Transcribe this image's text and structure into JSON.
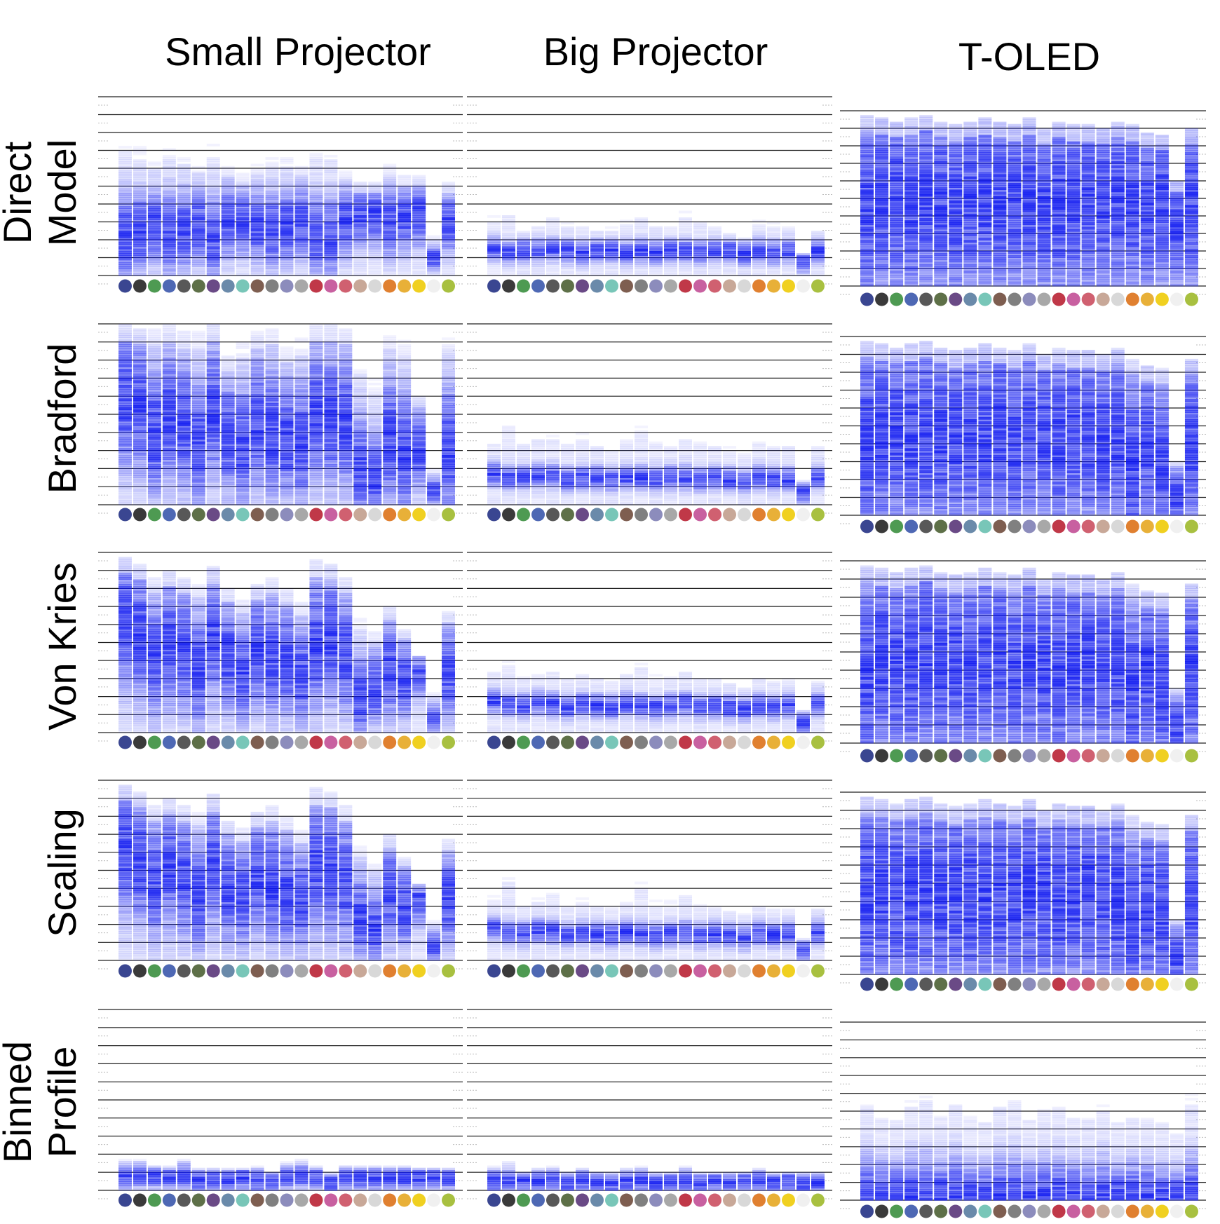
{
  "figure": {
    "columns": [
      "Small Projector",
      "Big Projector",
      "T-OLED"
    ],
    "rows": [
      [
        "Direct",
        "Model"
      ],
      [
        "Bradford"
      ],
      [
        "Von Kries"
      ],
      [
        "Scaling"
      ],
      [
        "Binned",
        "Profile"
      ]
    ]
  },
  "chart_data": {
    "type": "heatmap",
    "description_of_encoding": "",
    "swatch_colors": [
      "#3a4691",
      "#3a3a3a",
      "#4e9a52",
      "#4e68b4",
      "#585858",
      "#5e7048",
      "#6a4a86",
      "#6a8aaa",
      "#78c6b8",
      "#7e5e50",
      "#808080",
      "#8c8cbc",
      "#a8a8a8",
      "#c03848",
      "#c860a0",
      "#d06070",
      "#c8a898",
      "#d8d8d8",
      "#e08030",
      "#e8b038",
      "#f0d020",
      "#f0f0f0",
      "#a8c040"
    ],
    "rows": [
      "Direct Model",
      "Bradford",
      "Von Kries",
      "Scaling",
      "Binned Profile"
    ],
    "columns": [
      "Small Projector",
      "Big Projector",
      "T-OLED"
    ],
    "center_fraction": {
      "Direct Model": {
        "Small Projector": [
          0.22,
          0.24,
          0.28,
          0.24,
          0.26,
          0.28,
          0.22,
          0.3,
          0.3,
          0.28,
          0.26,
          0.28,
          0.3,
          0.22,
          0.22,
          0.3,
          0.32,
          0.34,
          0.3,
          0.32,
          0.34,
          0.1,
          0.3
        ],
        "Big Projector": [
          0.15,
          0.13,
          0.14,
          0.14,
          0.15,
          0.14,
          0.13,
          0.14,
          0.14,
          0.13,
          0.14,
          0.13,
          0.14,
          0.14,
          0.13,
          0.14,
          0.14,
          0.12,
          0.14,
          0.13,
          0.14,
          0.08,
          0.14
        ],
        "T-OLED": [
          0.45,
          0.5,
          0.48,
          0.46,
          0.5,
          0.48,
          0.45,
          0.47,
          0.5,
          0.46,
          0.48,
          0.5,
          0.45,
          0.47,
          0.49,
          0.46,
          0.48,
          0.5,
          0.47,
          0.45,
          0.49,
          0.35,
          0.48
        ]
      },
      "Bradford": {
        "Small Projector": [
          0.58,
          0.55,
          0.4,
          0.5,
          0.45,
          0.35,
          0.52,
          0.38,
          0.32,
          0.45,
          0.4,
          0.38,
          0.34,
          0.5,
          0.48,
          0.46,
          0.2,
          0.14,
          0.36,
          0.28,
          0.32,
          0.08,
          0.3
        ],
        "Big Projector": [
          0.17,
          0.15,
          0.15,
          0.16,
          0.16,
          0.14,
          0.15,
          0.15,
          0.14,
          0.15,
          0.15,
          0.14,
          0.15,
          0.15,
          0.14,
          0.15,
          0.14,
          0.13,
          0.15,
          0.14,
          0.14,
          0.07,
          0.15
        ],
        "T-OLED": [
          0.42,
          0.45,
          0.48,
          0.44,
          0.46,
          0.42,
          0.45,
          0.47,
          0.44,
          0.48,
          0.42,
          0.46,
          0.45,
          0.43,
          0.47,
          0.46,
          0.4,
          0.44,
          0.3,
          0.38,
          0.28,
          0.1,
          0.42
        ]
      },
      "Von Kries": {
        "Small Projector": [
          0.62,
          0.55,
          0.42,
          0.5,
          0.46,
          0.36,
          0.54,
          0.42,
          0.34,
          0.46,
          0.42,
          0.4,
          0.32,
          0.5,
          0.52,
          0.44,
          0.2,
          0.26,
          0.36,
          0.3,
          0.36,
          0.08,
          0.34
        ],
        "Big Projector": [
          0.18,
          0.16,
          0.15,
          0.17,
          0.16,
          0.14,
          0.16,
          0.15,
          0.14,
          0.16,
          0.15,
          0.14,
          0.15,
          0.16,
          0.14,
          0.15,
          0.14,
          0.13,
          0.15,
          0.14,
          0.15,
          0.06,
          0.16
        ],
        "T-OLED": [
          0.4,
          0.46,
          0.44,
          0.42,
          0.48,
          0.44,
          0.46,
          0.42,
          0.45,
          0.47,
          0.43,
          0.46,
          0.44,
          0.42,
          0.45,
          0.47,
          0.44,
          0.42,
          0.3,
          0.4,
          0.32,
          0.1,
          0.4
        ]
      },
      "Scaling": {
        "Small Projector": [
          0.62,
          0.56,
          0.44,
          0.52,
          0.46,
          0.36,
          0.54,
          0.4,
          0.36,
          0.46,
          0.42,
          0.38,
          0.34,
          0.52,
          0.5,
          0.44,
          0.24,
          0.18,
          0.38,
          0.3,
          0.36,
          0.08,
          0.34
        ],
        "Big Projector": [
          0.18,
          0.16,
          0.15,
          0.17,
          0.16,
          0.14,
          0.16,
          0.15,
          0.14,
          0.16,
          0.15,
          0.14,
          0.15,
          0.16,
          0.14,
          0.15,
          0.14,
          0.13,
          0.15,
          0.14,
          0.15,
          0.06,
          0.16
        ],
        "T-OLED": [
          0.44,
          0.46,
          0.42,
          0.44,
          0.48,
          0.42,
          0.46,
          0.44,
          0.45,
          0.47,
          0.43,
          0.46,
          0.44,
          0.42,
          0.45,
          0.47,
          0.44,
          0.42,
          0.28,
          0.38,
          0.34,
          0.1,
          0.4
        ]
      },
      "Binned Profile": {
        "Small Projector": [
          0.08,
          0.08,
          0.08,
          0.07,
          0.08,
          0.05,
          0.06,
          0.06,
          0.07,
          0.05,
          0.06,
          0.07,
          0.08,
          0.07,
          0.04,
          0.07,
          0.07,
          0.07,
          0.07,
          0.07,
          0.07,
          0.07,
          0.07
        ],
        "Big Projector": [
          0.05,
          0.05,
          0.05,
          0.05,
          0.05,
          0.04,
          0.05,
          0.05,
          0.04,
          0.05,
          0.05,
          0.04,
          0.05,
          0.05,
          0.04,
          0.05,
          0.04,
          0.05,
          0.05,
          0.04,
          0.05,
          0.04,
          0.05
        ],
        "T-OLED": [
          0.03,
          0.03,
          0.03,
          0.03,
          0.03,
          0.03,
          0.03,
          0.03,
          0.03,
          0.03,
          0.03,
          0.03,
          0.03,
          0.03,
          0.03,
          0.03,
          0.03,
          0.03,
          0.03,
          0.03,
          0.03,
          0.03,
          0.03
        ]
      }
    },
    "spread": {
      "Direct Model": {
        "Small Projector": 0.45,
        "Big Projector": 0.14,
        "T-OLED": 0.9
      },
      "Bradford": {
        "Small Projector": 0.55,
        "Big Projector": 0.14,
        "T-OLED": 0.9
      },
      "Von Kries": {
        "Small Projector": 0.55,
        "Big Projector": 0.15,
        "T-OLED": 0.9
      },
      "Scaling": {
        "Small Projector": 0.55,
        "Big Projector": 0.15,
        "T-OLED": 0.9
      },
      "Binned Profile": {
        "Small Projector": 0.08,
        "Big Projector": 0.06,
        "T-OLED": 0.5
      }
    },
    "max_height_fraction": {
      "Direct Model": {
        "Small Projector": [
          0.78,
          0.72,
          0.66,
          0.72,
          0.7,
          0.64,
          0.74,
          0.62,
          0.58,
          0.64,
          0.66,
          0.66,
          0.62,
          0.74,
          0.72,
          0.6,
          0.52,
          0.52,
          0.62,
          0.56,
          0.56,
          0.22,
          0.52
        ],
        "Big Projector": [
          0.34,
          0.38,
          0.28,
          0.3,
          0.36,
          0.3,
          0.3,
          0.28,
          0.28,
          0.32,
          0.36,
          0.3,
          0.3,
          0.36,
          0.34,
          0.3,
          0.26,
          0.24,
          0.32,
          0.3,
          0.3,
          0.12,
          0.28
        ],
        "T-OLED": [
          0.98,
          0.96,
          0.94,
          0.96,
          0.98,
          0.94,
          0.92,
          0.94,
          0.96,
          0.94,
          0.92,
          0.96,
          0.9,
          0.94,
          0.92,
          0.92,
          0.9,
          0.94,
          0.92,
          0.88,
          0.86,
          0.6,
          0.9
        ]
      },
      "Bradford": {
        "Small Projector": [
          1.0,
          0.98,
          0.98,
          1.0,
          0.96,
          0.96,
          1.0,
          0.82,
          0.9,
          0.96,
          0.98,
          0.88,
          0.92,
          1.0,
          1.0,
          0.98,
          0.8,
          0.7,
          0.96,
          0.92,
          0.6,
          0.2,
          0.96
        ],
        "Big Projector": [
          0.38,
          0.48,
          0.38,
          0.4,
          0.4,
          0.38,
          0.4,
          0.36,
          0.34,
          0.4,
          0.44,
          0.38,
          0.36,
          0.4,
          0.38,
          0.36,
          0.34,
          0.3,
          0.38,
          0.36,
          0.36,
          0.14,
          0.36
        ],
        "T-OLED": [
          0.98,
          0.96,
          0.94,
          0.96,
          0.98,
          0.94,
          0.92,
          0.94,
          0.96,
          0.94,
          0.92,
          0.96,
          0.9,
          0.94,
          0.92,
          0.92,
          0.9,
          0.94,
          0.88,
          0.84,
          0.82,
          0.3,
          0.88
        ]
      },
      "Von Kries": {
        "Small Projector": [
          0.98,
          0.94,
          0.86,
          0.9,
          0.86,
          0.84,
          0.92,
          0.8,
          0.74,
          0.82,
          0.86,
          0.8,
          0.72,
          0.96,
          0.94,
          0.86,
          0.64,
          0.56,
          0.7,
          0.58,
          0.42,
          0.22,
          0.68
        ],
        "Big Projector": [
          0.38,
          0.42,
          0.34,
          0.36,
          0.38,
          0.34,
          0.36,
          0.34,
          0.32,
          0.36,
          0.4,
          0.34,
          0.34,
          0.38,
          0.34,
          0.34,
          0.3,
          0.28,
          0.34,
          0.32,
          0.32,
          0.12,
          0.32
        ],
        "T-OLED": [
          0.98,
          0.96,
          0.94,
          0.96,
          0.98,
          0.94,
          0.92,
          0.94,
          0.96,
          0.94,
          0.92,
          0.96,
          0.9,
          0.94,
          0.92,
          0.92,
          0.9,
          0.94,
          0.88,
          0.84,
          0.82,
          0.3,
          0.88
        ]
      },
      "Scaling": {
        "Small Projector": [
          0.98,
          0.94,
          0.86,
          0.9,
          0.86,
          0.84,
          0.92,
          0.78,
          0.74,
          0.82,
          0.86,
          0.8,
          0.72,
          0.96,
          0.94,
          0.86,
          0.64,
          0.56,
          0.7,
          0.58,
          0.42,
          0.22,
          0.68
        ],
        "Big Projector": [
          0.38,
          0.48,
          0.34,
          0.36,
          0.4,
          0.34,
          0.36,
          0.34,
          0.32,
          0.36,
          0.44,
          0.34,
          0.34,
          0.4,
          0.34,
          0.34,
          0.3,
          0.28,
          0.34,
          0.32,
          0.32,
          0.12,
          0.32
        ],
        "T-OLED": [
          0.98,
          0.96,
          0.94,
          0.96,
          0.98,
          0.94,
          0.92,
          0.94,
          0.96,
          0.94,
          0.92,
          0.96,
          0.9,
          0.94,
          0.92,
          0.92,
          0.9,
          0.94,
          0.88,
          0.84,
          0.82,
          0.3,
          0.88
        ]
      },
      "Binned Profile": {
        "Small Projector": [
          0.18,
          0.18,
          0.14,
          0.14,
          0.18,
          0.12,
          0.12,
          0.12,
          0.12,
          0.14,
          0.1,
          0.16,
          0.18,
          0.14,
          0.1,
          0.14,
          0.14,
          0.14,
          0.14,
          0.14,
          0.12,
          0.12,
          0.12
        ],
        "Big Projector": [
          0.14,
          0.18,
          0.1,
          0.12,
          0.14,
          0.1,
          0.12,
          0.1,
          0.1,
          0.12,
          0.14,
          0.1,
          0.1,
          0.14,
          0.1,
          0.1,
          0.1,
          0.1,
          0.12,
          0.1,
          0.1,
          0.1,
          0.1
        ],
        "T-OLED": [
          0.6,
          0.52,
          0.5,
          0.58,
          0.62,
          0.52,
          0.6,
          0.5,
          0.48,
          0.58,
          0.62,
          0.5,
          0.56,
          0.58,
          0.52,
          0.5,
          0.56,
          0.48,
          0.52,
          0.5,
          0.48,
          0.42,
          0.6
        ]
      }
    }
  }
}
